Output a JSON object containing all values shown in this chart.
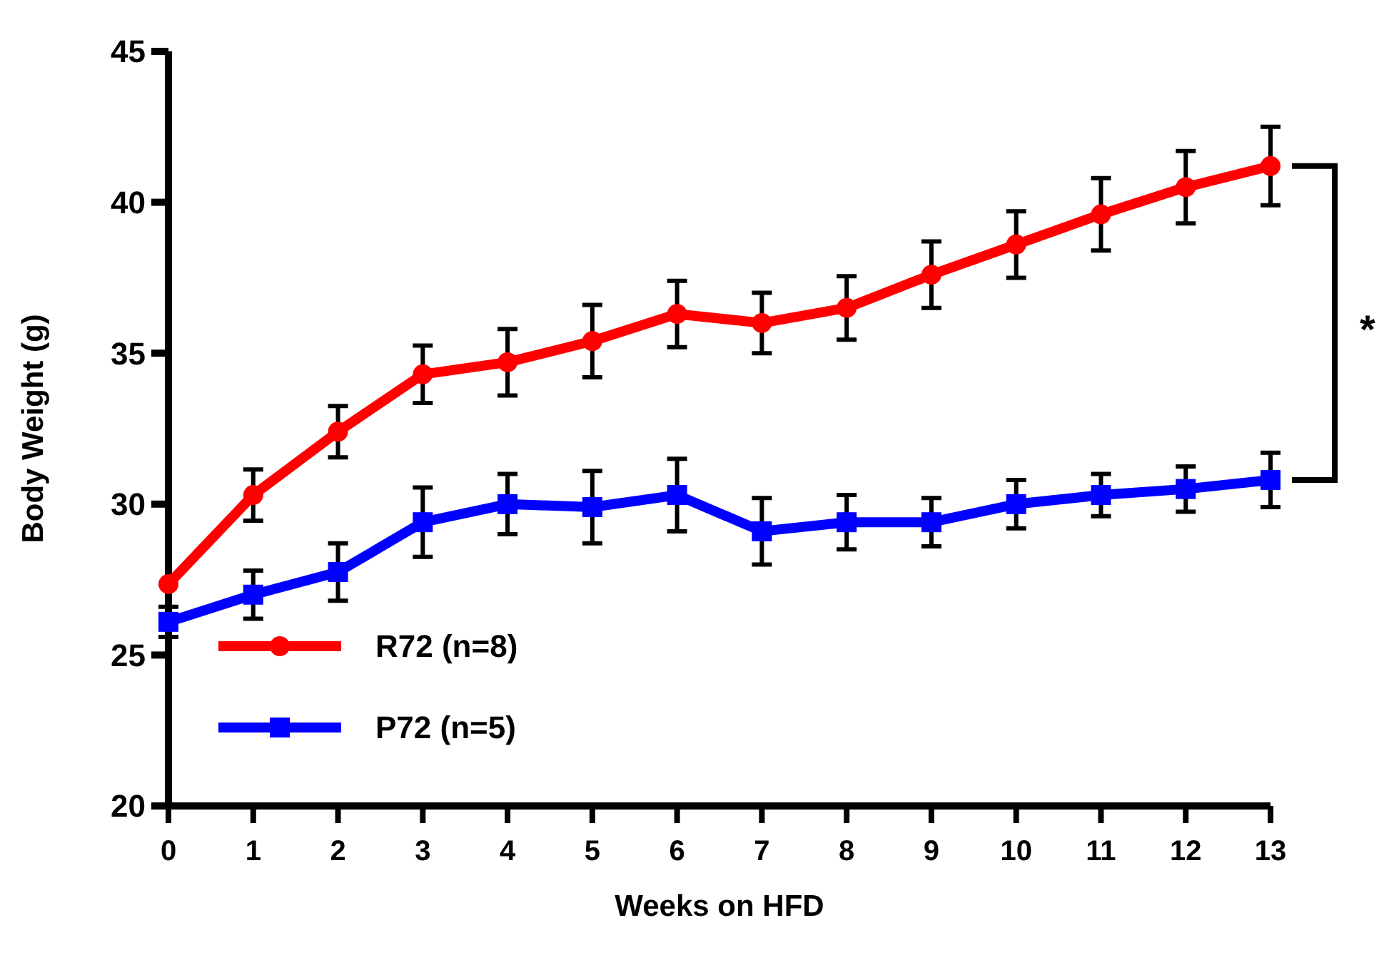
{
  "chart_data": {
    "type": "line",
    "xlabel": "Weeks on HFD",
    "ylabel": "Body Weight (g)",
    "x": [
      0,
      1,
      2,
      3,
      4,
      5,
      6,
      7,
      8,
      9,
      10,
      11,
      12,
      13
    ],
    "xlim": [
      0,
      13
    ],
    "xticks": [
      0,
      1,
      2,
      3,
      4,
      5,
      6,
      7,
      8,
      9,
      10,
      11,
      12,
      13
    ],
    "ylim": [
      20,
      45
    ],
    "yticks": [
      20,
      25,
      30,
      35,
      40,
      45
    ],
    "legend": "bottom left",
    "grid": false,
    "annotations": [
      "*"
    ],
    "series": [
      {
        "name": "R72 (n=8)",
        "color": "#ff0000",
        "marker": "circle",
        "values": [
          27.35,
          30.3,
          32.4,
          34.3,
          34.7,
          35.4,
          36.3,
          36.0,
          36.5,
          37.6,
          38.6,
          39.6,
          40.5,
          41.2
        ],
        "errors": [
          null,
          0.85,
          0.85,
          0.95,
          1.1,
          1.2,
          1.1,
          1.0,
          1.05,
          1.1,
          1.1,
          1.2,
          1.2,
          1.3
        ]
      },
      {
        "name": "P72 (n=5)",
        "color": "#0000ff",
        "marker": "square",
        "values": [
          26.1,
          27.0,
          27.75,
          29.4,
          30.0,
          29.9,
          30.3,
          29.1,
          29.4,
          29.4,
          30.0,
          30.3,
          30.5,
          30.8
        ],
        "errors": [
          0.5,
          0.8,
          0.95,
          1.15,
          1.0,
          1.2,
          1.2,
          1.1,
          0.9,
          0.8,
          0.8,
          0.7,
          0.75,
          0.9
        ]
      }
    ]
  }
}
